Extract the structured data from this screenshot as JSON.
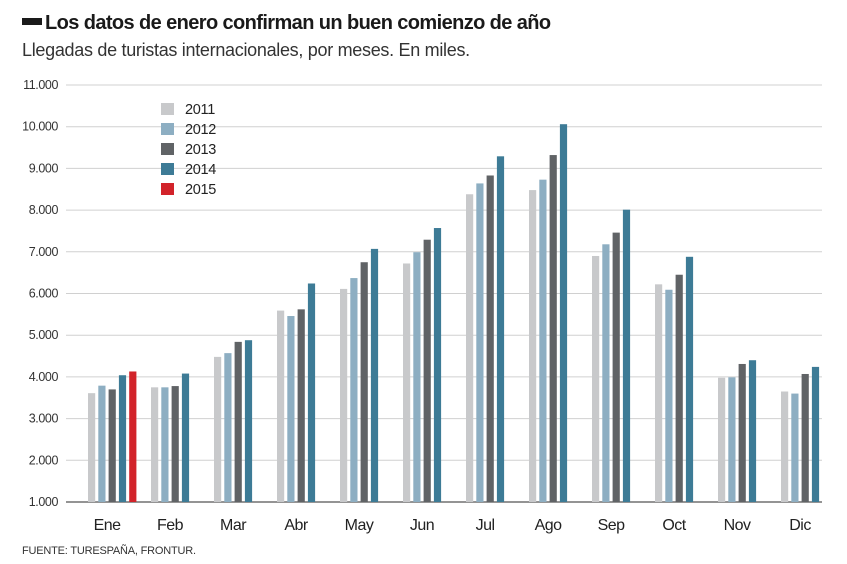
{
  "header": {
    "title": "Los datos de enero confirman un buen comienzo de año",
    "subtitle": "Llegadas de turistas internacionales, por meses. En miles."
  },
  "footer": {
    "source": "FUENTE: TURESPAÑA, FRONTUR."
  },
  "chart_data": {
    "type": "bar",
    "title": "Los datos de enero confirman un buen comienzo de año",
    "subtitle": "Llegadas de turistas internacionales, por meses. En miles.",
    "xlabel": "",
    "ylabel": "",
    "ylim": [
      1000,
      11000
    ],
    "yticks": [
      1000,
      2000,
      3000,
      4000,
      5000,
      6000,
      7000,
      8000,
      9000,
      10000,
      11000
    ],
    "ytick_labels": [
      "1.000",
      "2.000",
      "3.000",
      "4.000",
      "5.000",
      "6.000",
      "7.000",
      "8.000",
      "9.000",
      "10.000",
      "11.000"
    ],
    "grid": true,
    "legend_position": "top-left",
    "categories": [
      "Ene",
      "Feb",
      "Mar",
      "Abr",
      "May",
      "Jun",
      "Jul",
      "Ago",
      "Sep",
      "Oct",
      "Nov",
      "Dic"
    ],
    "series": [
      {
        "name": "2011",
        "color": "#c8c9cb",
        "values": [
          3610,
          3750,
          4480,
          5590,
          6110,
          6720,
          8380,
          8480,
          6900,
          6220,
          3980,
          3650
        ]
      },
      {
        "name": "2012",
        "color": "#8daec2",
        "values": [
          3790,
          3750,
          4570,
          5460,
          6370,
          6990,
          8640,
          8730,
          7180,
          6090,
          3990,
          3600
        ]
      },
      {
        "name": "2013",
        "color": "#606366",
        "values": [
          3700,
          3780,
          4840,
          5620,
          6750,
          7290,
          8830,
          9320,
          7460,
          6450,
          4310,
          4070
        ]
      },
      {
        "name": "2014",
        "color": "#3d7b96",
        "values": [
          4040,
          4080,
          4880,
          6240,
          7070,
          7570,
          9290,
          10060,
          8010,
          6880,
          4400,
          4240
        ]
      },
      {
        "name": "2015",
        "color": "#d2232a",
        "values": [
          4130,
          null,
          null,
          null,
          null,
          null,
          null,
          null,
          null,
          null,
          null,
          null
        ]
      }
    ]
  }
}
